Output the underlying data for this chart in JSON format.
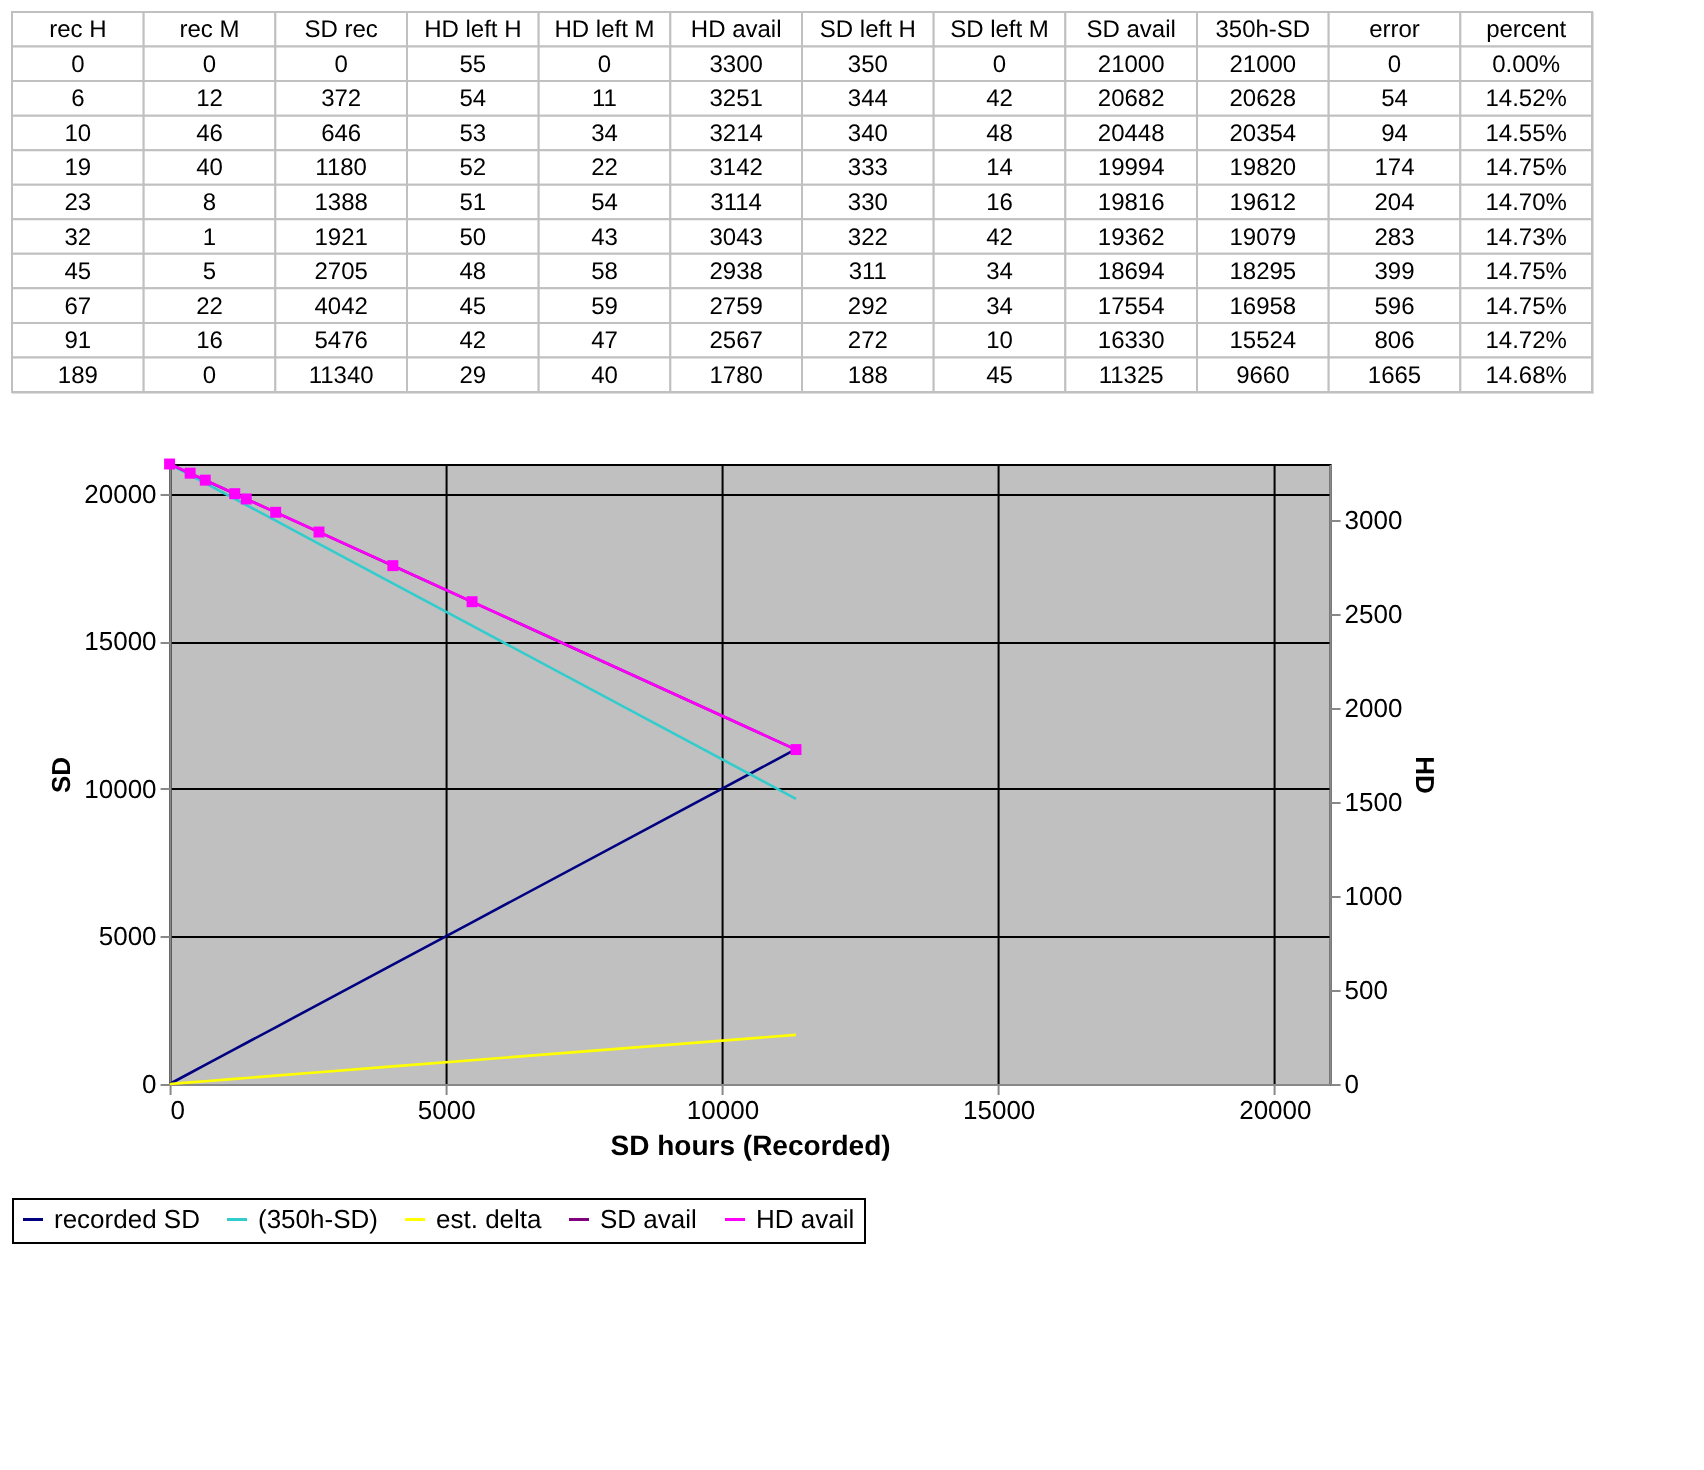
{
  "chart_data": [
    {
      "type": "other",
      "categories": [
        "rec H",
        "rec M",
        "SD rec",
        "HD left H",
        "HD left M",
        "HD avail",
        "SD left H",
        "SD left M",
        "SD avail",
        "350h-SD",
        "error",
        "percent"
      ],
      "annotations": [
        "0",
        "0",
        "0",
        "55",
        "0",
        "3300",
        "350",
        "0",
        "21000",
        "21000",
        "0",
        "0.00%",
        "6",
        "12",
        "372",
        "54",
        "11",
        "3251",
        "344",
        "42",
        "20682",
        "20628",
        "54",
        "14.52%",
        "10",
        "46",
        "646",
        "53",
        "34",
        "3214",
        "340",
        "48",
        "20448",
        "20354",
        "94",
        "14.55%",
        "19",
        "40",
        "1180",
        "52",
        "22",
        "3142",
        "333",
        "14",
        "19994",
        "19820",
        "174",
        "14.75%",
        "23",
        "8",
        "1388",
        "51",
        "54",
        "3114",
        "330",
        "16",
        "19816",
        "19612",
        "204",
        "14.70%",
        "32",
        "1",
        "1921",
        "50",
        "43",
        "3043",
        "322",
        "42",
        "19362",
        "19079",
        "283",
        "14.73%",
        "45",
        "5",
        "2705",
        "48",
        "58",
        "2938",
        "311",
        "34",
        "18694",
        "18295",
        "399",
        "14.75%",
        "67",
        "22",
        "4042",
        "45",
        "59",
        "2759",
        "292",
        "34",
        "17554",
        "16958",
        "596",
        "14.75%",
        "91",
        "16",
        "5476",
        "42",
        "47",
        "2567",
        "272",
        "10",
        "16330",
        "15524",
        "806",
        "14.72%",
        "189",
        "0",
        "11340",
        "29",
        "40",
        "1780",
        "188",
        "45",
        "11325",
        "9660",
        "1665",
        "14.68%"
      ]
    },
    {
      "type": "line",
      "x": [
        0,
        372,
        646,
        1180,
        1388,
        1921,
        2705,
        4042,
        5476,
        11340
      ],
      "series": [
        {
          "name": "recorded SD",
          "color": "#000080",
          "values": [
            0,
            372,
            646,
            1180,
            1388,
            1921,
            2705,
            4042,
            5476,
            11340
          ]
        },
        {
          "name": "(350h-SD)",
          "color": "#33cccc",
          "values": [
            21000,
            20628,
            20354,
            19820,
            19612,
            19079,
            18295,
            16958,
            15524,
            9660
          ]
        },
        {
          "name": "est. delta",
          "color": "#ffff00",
          "values": [
            0,
            54,
            94,
            174,
            204,
            283,
            399,
            596,
            806,
            1665
          ]
        },
        {
          "name": "SD avail",
          "color": "#800080",
          "values": [
            21000,
            20682,
            20448,
            19994,
            19816,
            19362,
            18694,
            17554,
            16330,
            11325
          ]
        },
        {
          "name": "HD avail",
          "color": "#ff00ff",
          "axis": "y2",
          "marker": "square",
          "values": [
            3300,
            3251,
            3214,
            3142,
            3114,
            3043,
            2938,
            2759,
            2567,
            1780
          ]
        }
      ],
      "xlabel": "SD hours (Recorded)",
      "ylabel": "SD",
      "y2label": "HD",
      "xlim": [
        0,
        21000
      ],
      "xticks": [
        0,
        5000,
        10000,
        15000,
        20000
      ],
      "ylim": [
        0,
        21000
      ],
      "yticks": [
        0,
        5000,
        10000,
        15000,
        20000
      ],
      "y2lim": [
        0,
        3300
      ],
      "y2ticks": [
        0,
        500,
        1000,
        1500,
        2000,
        2500,
        3000
      ],
      "grid": true,
      "legend": "bottom"
    }
  ]
}
